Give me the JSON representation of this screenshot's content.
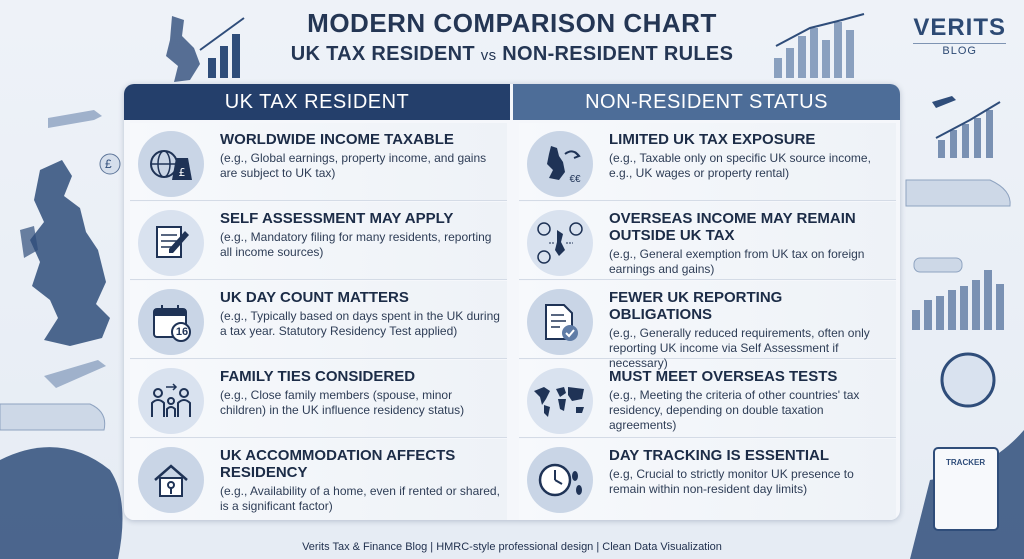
{
  "header": {
    "title_line1": "Modern Comparison Chart",
    "title_line2_left": "UK Tax Resident",
    "title_line2_vs": "vs",
    "title_line2_right": "Non-Resident Rules"
  },
  "brand": {
    "name": "VERITS",
    "sub": "BLOG"
  },
  "columns": {
    "left_header": "UK Tax Resident",
    "right_header": "Non-Resident Status"
  },
  "left_rows": [
    {
      "icon": "globe-money-icon",
      "title": "Worldwide Income Taxable",
      "desc": "(e.g., Global earnings, property income, and gains are subject to UK tax)"
    },
    {
      "icon": "form-pen-icon",
      "title": "Self Assessment May Apply",
      "desc": "(e.g., Mandatory filing for many residents, reporting all income sources)"
    },
    {
      "icon": "calendar-icon",
      "title": "UK Day Count Matters",
      "desc": "(e.g., Typically based on days spent in the UK during a tax year. Statutory Residency Test applied)"
    },
    {
      "icon": "family-icon",
      "title": "Family Ties Considered",
      "desc": "(e.g., Close family members (spouse, minor children) in the UK influence residency status)"
    },
    {
      "icon": "house-key-icon",
      "title": "UK Accommodation Affects Residency",
      "desc": "(e.g., Availability of a home, even if rented or shared, is a significant factor)"
    }
  ],
  "right_rows": [
    {
      "icon": "uk-map-arrow-icon",
      "title": "Limited UK Tax Exposure",
      "desc": "(e.g., Taxable only on specific UK source income, e.g., UK wages or property rental)"
    },
    {
      "icon": "currency-flow-icon",
      "title": "Overseas Income May Remain Outside UK Tax",
      "desc": "(e.g., General exemption from UK tax on foreign earnings and gains)"
    },
    {
      "icon": "document-check-icon",
      "title": "Fewer UK Reporting Obligations",
      "desc": "(e.g., Generally reduced requirements, often only reporting UK income via Self Assessment if necessary)"
    },
    {
      "icon": "world-map-icon",
      "title": "Must Meet Overseas Tests",
      "desc": "(e.g., Meeting the criteria of other countries' tax residency, depending on double taxation agreements)"
    },
    {
      "icon": "clock-footsteps-icon",
      "title": "Day Tracking Is Essential",
      "desc": "(e.g, Crucial to strictly monitor UK presence to remain within non-resident day limits)"
    }
  ],
  "calendar_day": "16",
  "currency_symbols": {
    "pound": "£",
    "euro": "€€",
    "dollar": "$"
  },
  "tracker_label": "TRACKER",
  "footer": "Verits Tax & Finance Blog | HMRC-style professional design | Clean Data Visualization",
  "colors": {
    "navy": "#243f6b",
    "steel": "#4d6d98",
    "icon_bg": "#c9d5e6"
  }
}
